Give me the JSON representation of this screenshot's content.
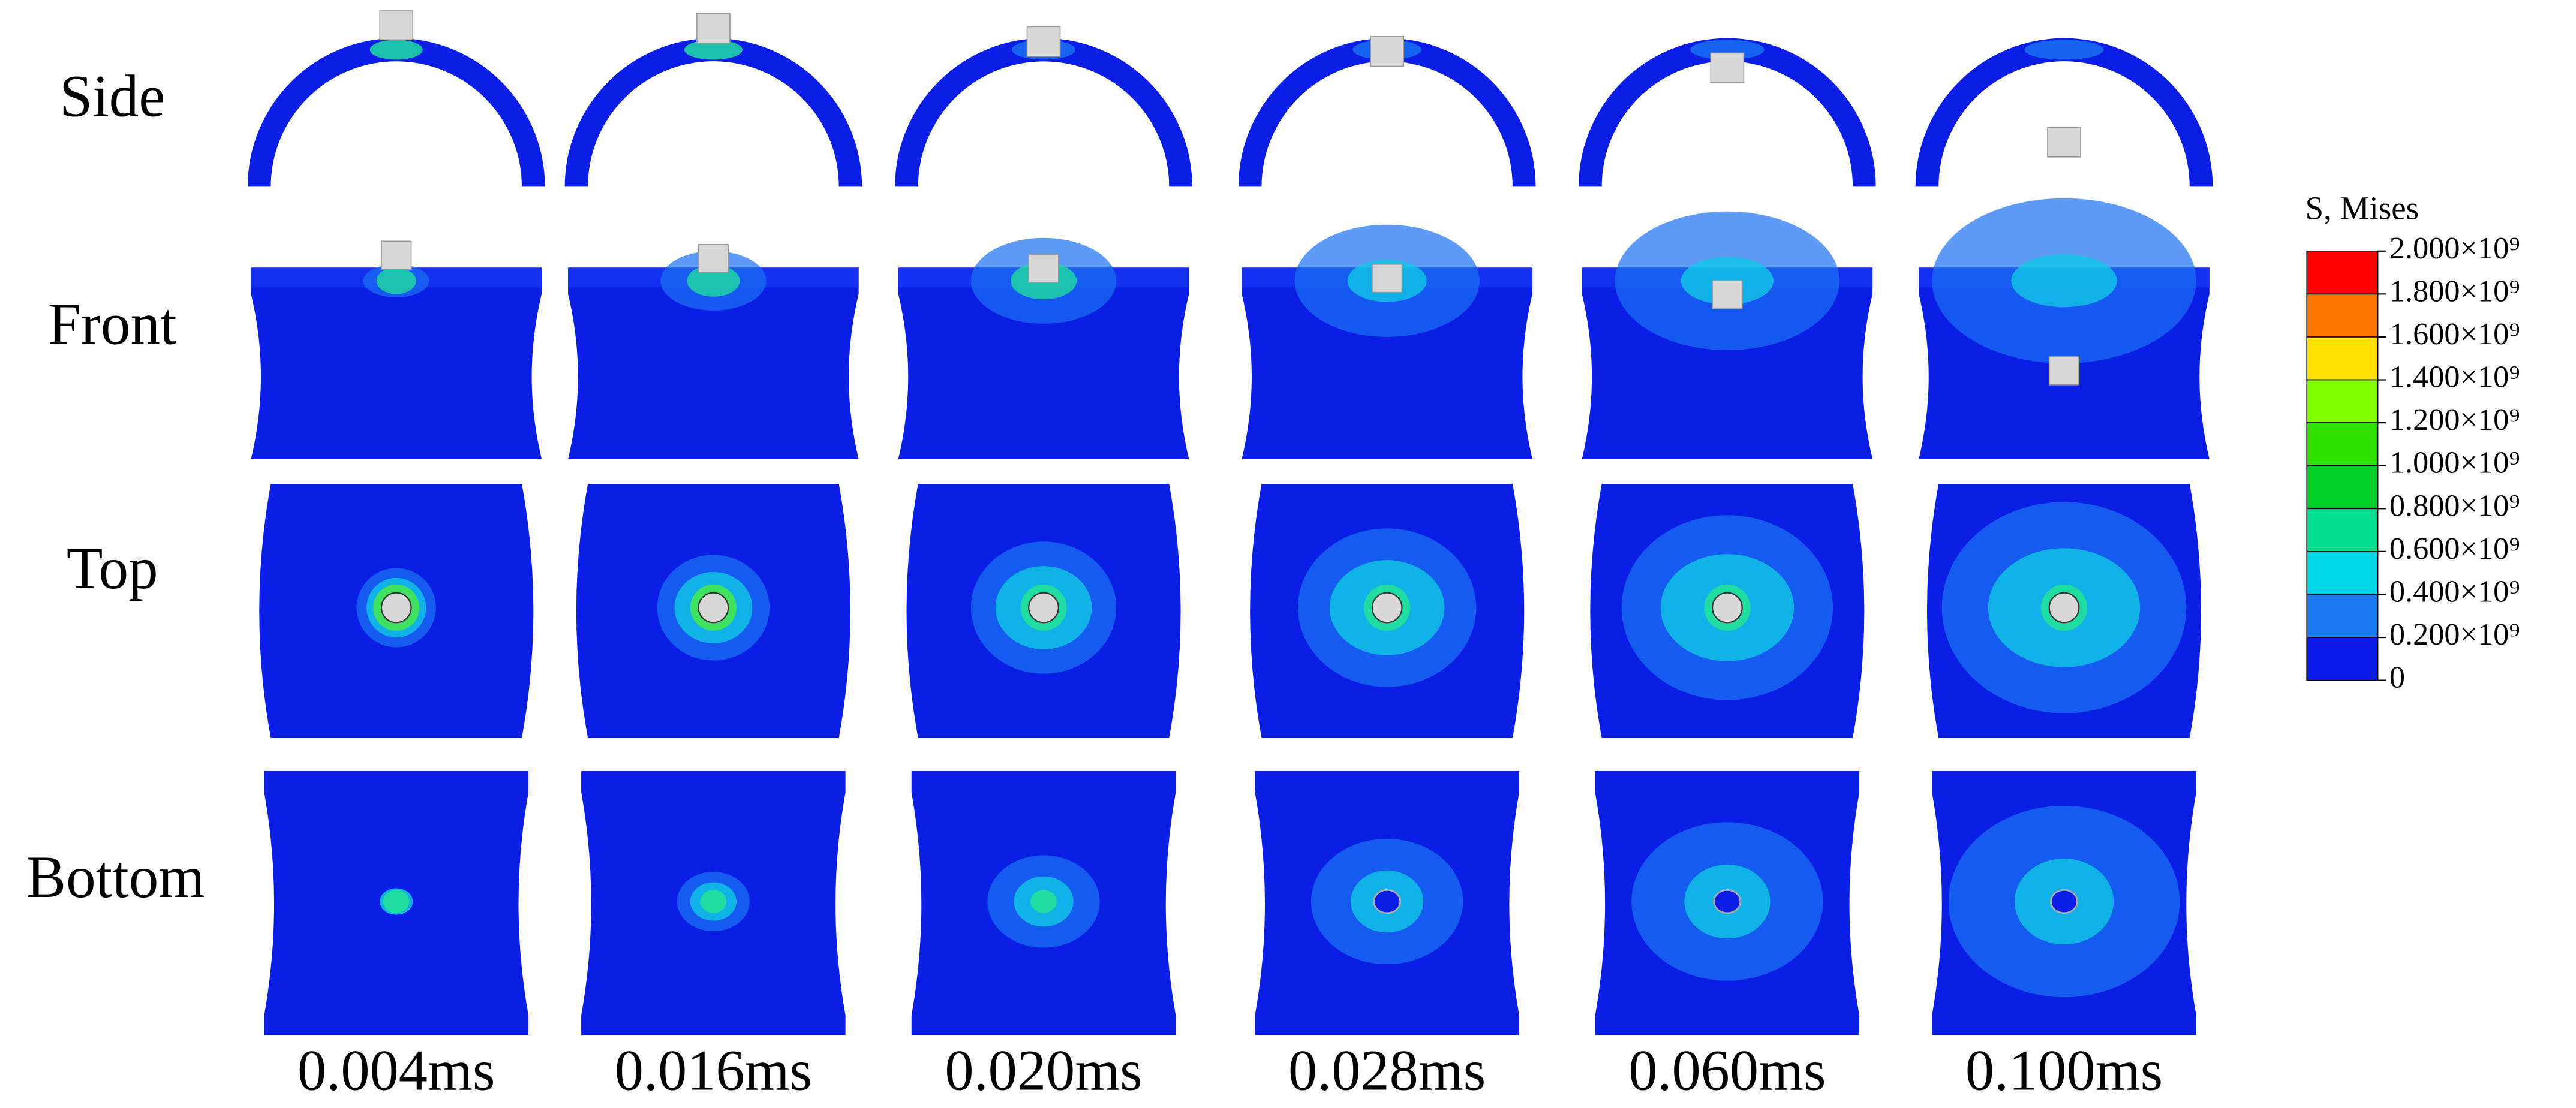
{
  "row_labels": [
    "Side",
    "Front",
    "Top",
    "Bottom"
  ],
  "time_labels": [
    "0.004ms",
    "0.016ms",
    "0.020ms",
    "0.028ms",
    "0.060ms",
    "0.100ms"
  ],
  "legend": {
    "title": "S, Mises",
    "labels": [
      "2.000×10⁹",
      "1.800×10⁹",
      "1.600×10⁹",
      "1.400×10⁹",
      "1.200×10⁹",
      "1.000×10⁹",
      "0.800×10⁹",
      "0.600×10⁹",
      "0.400×10⁹",
      "0.200×10⁹",
      "0"
    ],
    "colors": [
      "#ff0000",
      "#ff7800",
      "#ffe000",
      "#80ff00",
      "#30e000",
      "#00d028",
      "#00e090",
      "#00d8e8",
      "#1a78f0",
      "#0a18e8"
    ]
  }
}
